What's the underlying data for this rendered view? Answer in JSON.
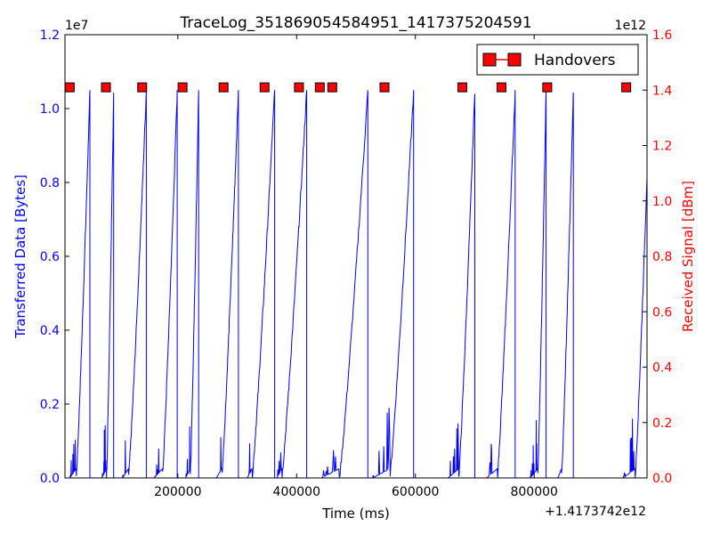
{
  "chart_data": {
    "type": "line",
    "title": "TraceLog_351869054584951_1417375204591",
    "xlabel": "Time (ms)",
    "ylabel_left": "Transferred Data [Bytes]",
    "ylabel_right": "Received Signal [dBm]",
    "x_offset_label": "+1.4173742e12",
    "left_exponent_label": "1e7",
    "right_exponent_label": "1e12",
    "xlim": [
      10000,
      990000
    ],
    "ylim_left": [
      0,
      1.2
    ],
    "ylim_right": [
      0,
      1.6
    ],
    "x_ticks": [
      200000,
      400000,
      600000,
      800000
    ],
    "x_tick_labels": [
      "200000",
      "400000",
      "600000",
      "800000"
    ],
    "y_left_ticks": [
      0.0,
      0.2,
      0.4,
      0.6,
      0.8,
      1.0,
      1.2
    ],
    "y_left_tick_labels": [
      "0.0",
      "0.2",
      "0.4",
      "0.6",
      "0.8",
      "1.0",
      "1.2"
    ],
    "y_right_ticks": [
      0.0,
      0.2,
      0.4,
      0.6,
      0.8,
      1.0,
      1.2,
      1.4,
      1.6
    ],
    "y_right_tick_labels": [
      "0.0",
      "0.2",
      "0.4",
      "0.6",
      "0.8",
      "1.0",
      "1.2",
      "1.4",
      "1.6"
    ],
    "legend": {
      "placement": "top-right",
      "label": "Handovers"
    },
    "grid": false,
    "colors": {
      "left_axis": "#0000ff",
      "right_axis": "#ff0000",
      "transfer_line": "#0000ff",
      "marker_fill": "#ff0000",
      "marker_edge": "#000000"
    },
    "series": [
      {
        "name": "Transferred Data",
        "segments": [
          {
            "start": 18000,
            "end": 52000,
            "peak": 1.05,
            "ramp": 23000
          },
          {
            "start": 72000,
            "end": 92000,
            "peak": 1.05,
            "ramp": 12000
          },
          {
            "start": 107000,
            "end": 147000,
            "peak": 1.05,
            "ramp": 30000
          },
          {
            "start": 160000,
            "end": 199000,
            "peak": 1.05,
            "ramp": 25000
          },
          {
            "start": 213000,
            "end": 235000,
            "peak": 1.05,
            "ramp": 14000
          },
          {
            "start": 265000,
            "end": 302000,
            "peak": 1.05,
            "ramp": 28000
          },
          {
            "start": 317000,
            "end": 363000,
            "peak": 1.05,
            "ramp": 38000
          },
          {
            "start": 367000,
            "end": 417000,
            "peak": 1.05,
            "ramp": 42000
          },
          {
            "start": 442000,
            "end": 520000,
            "peak": 1.05,
            "ramp": 48000
          },
          {
            "start": 528000,
            "end": 597000,
            "peak": 1.05,
            "ramp": 40000
          },
          {
            "start": 655000,
            "end": 700000,
            "peak": 1.05,
            "ramp": 27000
          },
          {
            "start": 720000,
            "end": 768000,
            "peak": 1.05,
            "ramp": 30000
          },
          {
            "start": 793000,
            "end": 820000,
            "peak": 1.05,
            "ramp": 14000
          },
          {
            "start": 840000,
            "end": 866000,
            "peak": 1.05,
            "ramp": 20000
          },
          {
            "start": 950000,
            "end": 990000,
            "peak": 0.82,
            "ramp": 20000
          }
        ]
      },
      {
        "name": "Handovers",
        "axis": "right",
        "x": [
          18000,
          79000,
          140000,
          208000,
          277000,
          346000,
          404000,
          439000,
          460000,
          548000,
          679000,
          745000,
          822000,
          955000
        ],
        "y": [
          1.41,
          1.41,
          1.41,
          1.41,
          1.41,
          1.41,
          1.41,
          1.41,
          1.41,
          1.41,
          1.41,
          1.41,
          1.41,
          1.41
        ]
      }
    ]
  }
}
